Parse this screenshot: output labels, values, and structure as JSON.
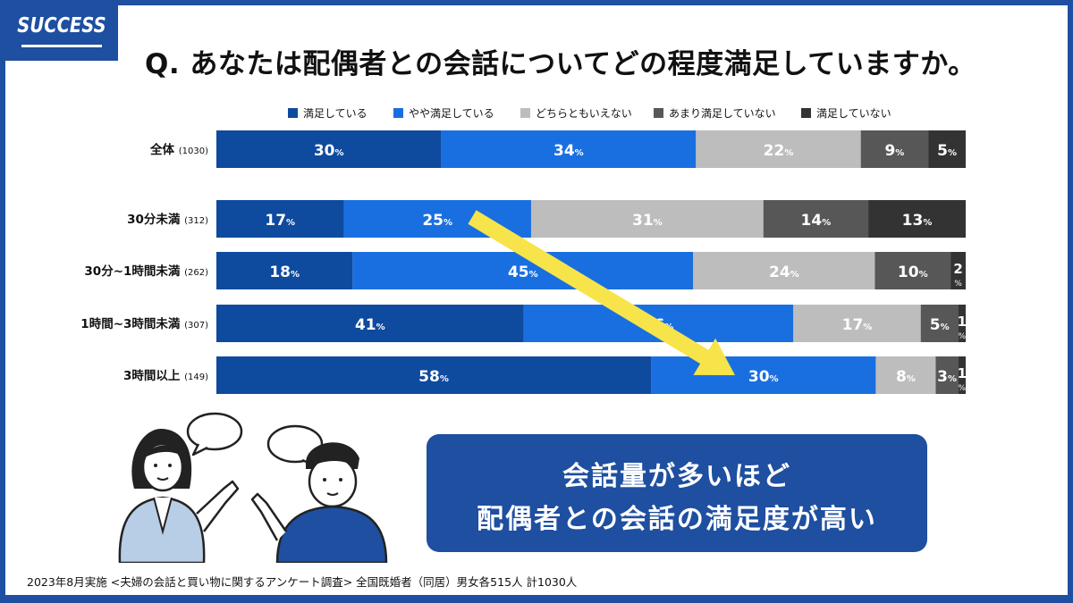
{
  "logo": "SUCCESS",
  "title": "Q. あなたは配偶者との会話についてどの程度満足していますか。",
  "note": {
    "line1": "会話量が多いほど",
    "line2": "配偶者との会話の満足度が高い"
  },
  "footnote": "2023年8月実施 <夫婦の会話と買い物に関するアンケート調査> 全国既婚者（同居）男女各515人 計1030人",
  "colors": {
    "brand": "#1e4fa0",
    "arrow": "#f6e44a"
  },
  "icons": [
    "speech-bubble-icon",
    "woman-illustration",
    "man-illustration"
  ],
  "chart_data": {
    "type": "bar",
    "orientation": "horizontal",
    "stacked": true,
    "percent_unit": "%",
    "legend_position": "top",
    "categories": [
      {
        "label": "全体",
        "n": "(1030)"
      },
      {
        "label": "30分未満",
        "n": "(312)"
      },
      {
        "label": "30分~1時間未満",
        "n": "(262)"
      },
      {
        "label": "1時間~3時間未満",
        "n": "(307)"
      },
      {
        "label": "3時間以上",
        "n": "(149)"
      }
    ],
    "series": [
      {
        "name": "満足している",
        "color": "#0e4a9e",
        "values": [
          30,
          17,
          18,
          41,
          58
        ]
      },
      {
        "name": "やや満足している",
        "color": "#1a6fe0",
        "values": [
          34,
          25,
          45,
          36,
          30
        ]
      },
      {
        "name": "どちらともいえない",
        "color": "#bdbdbd",
        "values": [
          22,
          31,
          24,
          17,
          8
        ]
      },
      {
        "name": "あまり満足していない",
        "color": "#575757",
        "values": [
          9,
          14,
          10,
          5,
          3
        ]
      },
      {
        "name": "満足していない",
        "color": "#333333",
        "values": [
          5,
          13,
          2,
          1,
          1
        ]
      }
    ]
  }
}
